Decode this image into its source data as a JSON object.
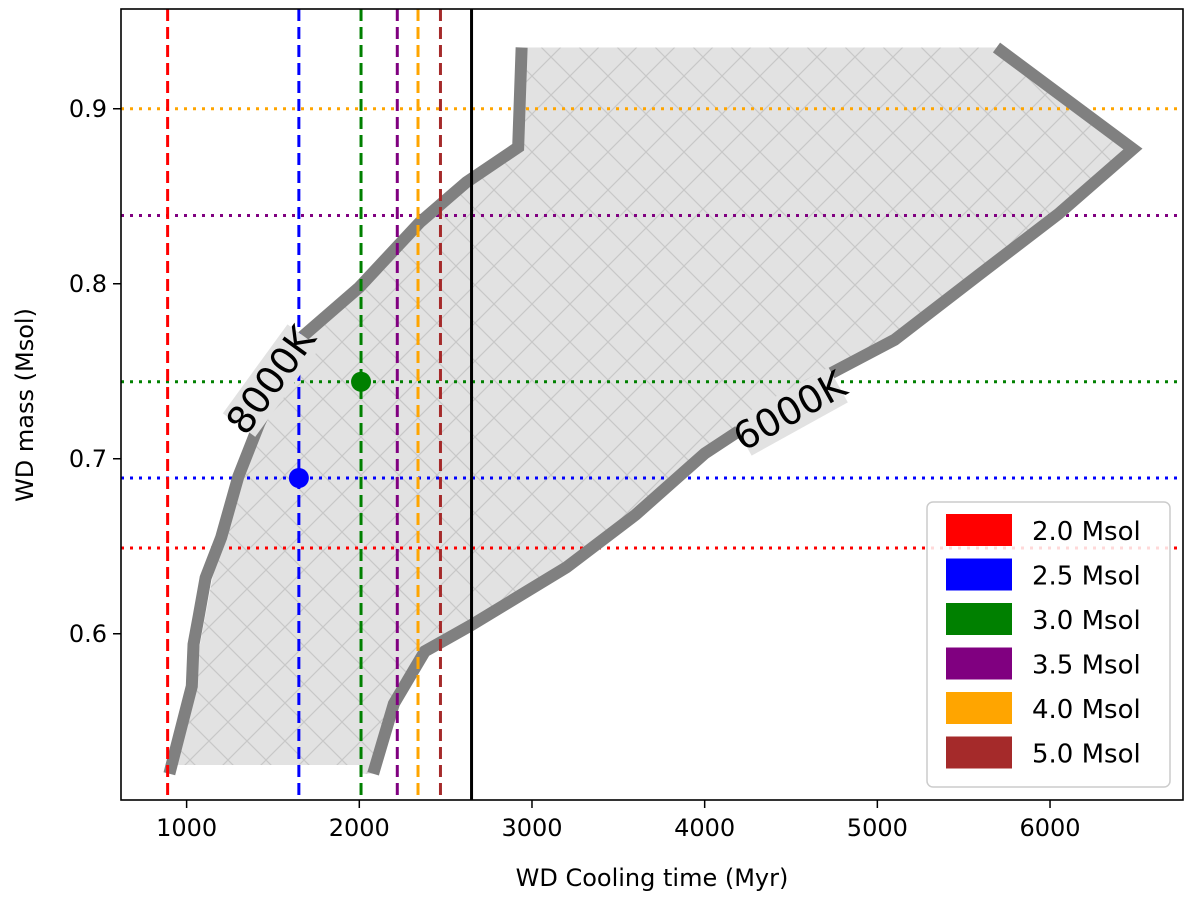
{
  "chart_data": {
    "type": "line",
    "xlabel": "WD Cooling time (Myr)",
    "ylabel": "WD mass (Msol)",
    "xlim": [
      620,
      6770
    ],
    "ylim": [
      0.505,
      0.957
    ],
    "xticks": [
      1000,
      2000,
      3000,
      4000,
      5000,
      6000
    ],
    "yticks": [
      0.6,
      0.7,
      0.8,
      0.9
    ],
    "grid": false,
    "legend_position": "lower-right",
    "region": {
      "fill": "#e2e2e2",
      "hatch": "crosshatch",
      "boundary": [
        [
          900,
          0.525
        ],
        [
          2000,
          0.525
        ],
        [
          2000,
          0.52
        ],
        [
          2080,
          0.52
        ],
        [
          2200,
          0.56
        ],
        [
          2380,
          0.59
        ],
        [
          2650,
          0.605
        ],
        [
          3200,
          0.638
        ],
        [
          3600,
          0.668
        ],
        [
          4000,
          0.703
        ],
        [
          4600,
          0.742
        ],
        [
          5100,
          0.768
        ],
        [
          5600,
          0.806
        ],
        [
          6050,
          0.84
        ],
        [
          6460,
          0.877
        ],
        [
          5700,
          0.935
        ],
        [
          2950,
          0.935
        ],
        [
          2920,
          0.878
        ],
        [
          2620,
          0.858
        ],
        [
          2350,
          0.835
        ],
        [
          2000,
          0.798
        ],
        [
          1650,
          0.768
        ],
        [
          1400,
          0.717
        ],
        [
          1150,
          0.632
        ],
        [
          1070,
          0.59
        ],
        [
          1060,
          0.57
        ],
        [
          900,
          0.525
        ]
      ]
    },
    "boundary_curves": [
      {
        "label": "8000K",
        "color": "#808080",
        "points": [
          [
            900,
            0.52
          ],
          [
            1030,
            0.57
          ],
          [
            1040,
            0.594
          ],
          [
            1070,
            0.61
          ],
          [
            1110,
            0.632
          ],
          [
            1200,
            0.655
          ],
          [
            1300,
            0.69
          ],
          [
            1420,
            0.72
          ],
          [
            1650,
            0.768
          ],
          [
            2000,
            0.798
          ],
          [
            2350,
            0.835
          ],
          [
            2620,
            0.858
          ],
          [
            2920,
            0.878
          ],
          [
            2940,
            0.935
          ]
        ]
      },
      {
        "label": "6000K",
        "color": "#808080",
        "points": [
          [
            2080,
            0.52
          ],
          [
            2200,
            0.56
          ],
          [
            2380,
            0.59
          ],
          [
            2650,
            0.605
          ],
          [
            3200,
            0.638
          ],
          [
            3600,
            0.668
          ],
          [
            4000,
            0.703
          ],
          [
            4600,
            0.742
          ],
          [
            5100,
            0.768
          ],
          [
            5600,
            0.806
          ],
          [
            6050,
            0.84
          ],
          [
            6480,
            0.877
          ],
          [
            5690,
            0.935
          ]
        ]
      }
    ],
    "series": [
      {
        "name": "2.0 Msol",
        "color": "#ff0000",
        "cooling_time": 890,
        "wd_mass": 0.649
      },
      {
        "name": "2.5 Msol",
        "color": "#0000ff",
        "cooling_time": 1650,
        "wd_mass": 0.689
      },
      {
        "name": "3.0 Msol",
        "color": "#008000",
        "cooling_time": 2010,
        "wd_mass": 0.744
      },
      {
        "name": "3.5 Msol",
        "color": "#800080",
        "cooling_time": 2220,
        "wd_mass": 0.839
      },
      {
        "name": "4.0 Msol",
        "color": "#ffa500",
        "cooling_time": 2340,
        "wd_mass": 0.9
      },
      {
        "name": "5.0 Msol",
        "color": "#a52a2a",
        "cooling_time": 2470,
        "wd_mass": null
      }
    ],
    "points": [
      {
        "x": 1650,
        "y": 0.689,
        "color": "#0000ff"
      },
      {
        "x": 2010,
        "y": 0.744,
        "color": "#008000"
      }
    ],
    "reference_line": {
      "x": 2650,
      "color": "#000000"
    }
  }
}
